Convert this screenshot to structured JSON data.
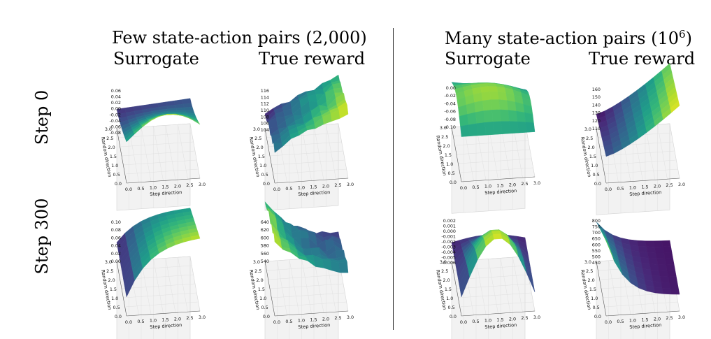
{
  "figure": {
    "groups": [
      {
        "title": "Few state-action pairs (2,000)",
        "columns": [
          "Surrogate",
          "True reward"
        ]
      },
      {
        "title_prefix": "Many state-action pairs (10",
        "title_exponent": "6",
        "title_suffix": ")",
        "columns": [
          "Surrogate",
          "True reward"
        ]
      }
    ],
    "rows": [
      "Step 0",
      "Step 300"
    ]
  },
  "chart_data": [
    {
      "type": "surface",
      "group": "Few state-action pairs (2,000)",
      "row": "Step 0",
      "column": "Surrogate",
      "xlabel": "Step direction",
      "ylabel": "Random direction",
      "xticks": [
        "0.0",
        "0.5",
        "1.0",
        "1.5",
        "2.0",
        "2.5",
        "3.0"
      ],
      "yticks": [
        "0.0",
        "0.5",
        "1.0",
        "1.5",
        "2.0",
        "2.5",
        "3.0"
      ],
      "zticks": [
        "0.06",
        "0.04",
        "0.02",
        "0.00",
        "-0.02",
        "-0.04",
        "-0.06",
        "-0.08"
      ],
      "zlim": [
        -0.09,
        0.06
      ],
      "shape": "ridge",
      "colormap": "viridis"
    },
    {
      "type": "surface",
      "group": "Few state-action pairs (2,000)",
      "row": "Step 0",
      "column": "True reward",
      "xlabel": "Step direction",
      "ylabel": "Random direction",
      "xticks": [
        "0.0",
        "0.5",
        "1.0",
        "1.5",
        "2.0",
        "2.5",
        "3.0"
      ],
      "yticks": [
        "0.0",
        "0.5",
        "1.0",
        "1.5",
        "2.0",
        "2.5",
        "3.0"
      ],
      "zticks": [
        "116",
        "114",
        "112",
        "110",
        "108",
        "106",
        "104"
      ],
      "zlim": [
        100,
        117
      ],
      "shape": "noisy-increasing",
      "colormap": "viridis"
    },
    {
      "type": "surface",
      "group": "Many state-action pairs (10^6)",
      "row": "Step 0",
      "column": "Surrogate",
      "xlabel": "Step direction",
      "ylabel": "Random direction",
      "xticks": [
        "0.0",
        "0.5",
        "1.0",
        "1.5",
        "2.0",
        "2.5",
        "3.0"
      ],
      "yticks": [
        "0.0",
        "0.5",
        "1.0",
        "1.5",
        "2.0",
        "2.5",
        "3.0"
      ],
      "zticks": [
        "0.00",
        "-0.02",
        "-0.04",
        "-0.06",
        "-0.08",
        "-0.10"
      ],
      "zlim": [
        -0.11,
        0.01
      ],
      "shape": "flat-dome",
      "colormap": "viridis"
    },
    {
      "type": "surface",
      "group": "Many state-action pairs (10^6)",
      "row": "Step 0",
      "column": "True reward",
      "xlabel": "Step direction",
      "ylabel": "Random direction",
      "xticks": [
        "0.0",
        "0.5",
        "1.0",
        "1.5",
        "2.0",
        "2.5",
        "3.0"
      ],
      "yticks": [
        "0.0",
        "0.5",
        "1.0",
        "1.5",
        "2.0",
        "2.5",
        "3.0"
      ],
      "zticks": [
        "160",
        "150",
        "140",
        "130",
        "120",
        "110"
      ],
      "zlim": [
        100,
        165
      ],
      "shape": "increasing",
      "colormap": "viridis"
    },
    {
      "type": "surface",
      "group": "Few state-action pairs (2,000)",
      "row": "Step 300",
      "column": "Surrogate",
      "xlabel": "Step direction",
      "ylabel": "Random direction",
      "xticks": [
        "0.0",
        "0.5",
        "1.0",
        "1.5",
        "2.0",
        "2.5",
        "3.0"
      ],
      "yticks": [
        "0.0",
        "0.5",
        "1.0",
        "1.5",
        "2.0",
        "2.5",
        "3.0"
      ],
      "zticks": [
        "0.10",
        "0.08",
        "0.06",
        "0.04",
        "0.02",
        "0.00"
      ],
      "zlim": [
        -0.02,
        0.11
      ],
      "shape": "saturating",
      "colormap": "viridis"
    },
    {
      "type": "surface",
      "group": "Few state-action pairs (2,000)",
      "row": "Step 300",
      "column": "True reward",
      "xlabel": "Step direction",
      "ylabel": "Random direction",
      "xticks": [
        "0.0",
        "0.5",
        "1.0",
        "1.5",
        "2.0",
        "2.5",
        "3.0"
      ],
      "yticks": [
        "0.0",
        "0.5",
        "1.0",
        "1.5",
        "2.0",
        "2.5",
        "3.0"
      ],
      "zticks": [
        "640",
        "620",
        "600",
        "580",
        "560",
        "540"
      ],
      "zlim": [
        520,
        645
      ],
      "shape": "noisy-decreasing",
      "colormap": "viridis"
    },
    {
      "type": "surface",
      "group": "Many state-action pairs (10^6)",
      "row": "Step 300",
      "column": "Surrogate",
      "xlabel": "Step direction",
      "ylabel": "Random direction",
      "xticks": [
        "0.0",
        "0.5",
        "1.0",
        "1.5",
        "2.0",
        "2.5",
        "3.0"
      ],
      "yticks": [
        "0.0",
        "0.5",
        "1.0",
        "1.5",
        "2.0",
        "2.5",
        "3.0"
      ],
      "zticks": [
        "0.002",
        "0.001",
        "0.000",
        "-0.001",
        "-0.002",
        "-0.003",
        "-0.004",
        "-0.005",
        "-0.006"
      ],
      "zlim": [
        -0.0065,
        0.0025
      ],
      "shape": "dome",
      "colormap": "viridis"
    },
    {
      "type": "surface",
      "group": "Many state-action pairs (10^6)",
      "row": "Step 300",
      "column": "True reward",
      "xlabel": "Step direction",
      "ylabel": "Random direction",
      "xticks": [
        "0.0",
        "0.5",
        "1.0",
        "1.5",
        "2.0",
        "2.5",
        "3.0"
      ],
      "yticks": [
        "0.0",
        "0.5",
        "1.0",
        "1.5",
        "2.0",
        "2.5",
        "3.0"
      ],
      "zticks": [
        "800",
        "750",
        "700",
        "650",
        "600",
        "550",
        "500",
        "450"
      ],
      "zlim": [
        430,
        810
      ],
      "shape": "decay",
      "colormap": "viridis"
    }
  ]
}
